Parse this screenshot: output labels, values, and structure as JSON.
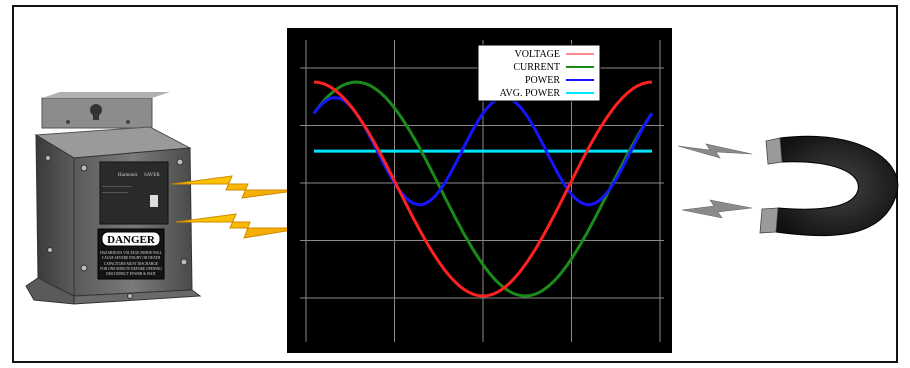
{
  "chart_data": {
    "type": "line",
    "title": "",
    "xlabel": "",
    "ylabel": "",
    "x_range": [
      0,
      360
    ],
    "y_range": [
      -1.3,
      1.3
    ],
    "grid": true,
    "legend_position": "top-right",
    "series": [
      {
        "name": "VOLTAGE",
        "color": "#ff2020",
        "formula": "cos(t)",
        "amplitude": 1.0,
        "phase_deg": 0
      },
      {
        "name": "CURRENT",
        "color": "#1a8a1a",
        "formula": "cos(t - 45deg)",
        "amplitude": 1.0,
        "phase_deg": -45
      },
      {
        "name": "POWER",
        "color": "#1515ff",
        "formula": "voltage * current"
      },
      {
        "name": "AVG. POWER",
        "color": "#00e5ff",
        "value": 0.354
      }
    ]
  },
  "legend": {
    "voltage": "VOLTAGE",
    "current": "CURRENT",
    "power": "POWER",
    "avg_power": "AVG. POWER"
  },
  "device": {
    "warning_label": "DANGER",
    "warning_lines": [
      "HAZARDOUS VOLTAGE INSIDE WILL",
      "CAUSE SEVERE INJURY OR DEATH",
      "CAPACITORS MUST DISCHARGE",
      "FOR ONE MINUTE BEFORE OPENING",
      "DISCONNECT POWER & WAIT"
    ],
    "nameplate_lines": [
      "Harmonic",
      "SAVER"
    ]
  },
  "colors": {
    "plot_background": "#000000",
    "grid": "#8a8a8a",
    "lightning": "#f5b800",
    "magnet": "#1a1a1a"
  },
  "icons": [
    "electrical-box-icon",
    "lightning-bolt-icon",
    "horseshoe-magnet-icon"
  ]
}
